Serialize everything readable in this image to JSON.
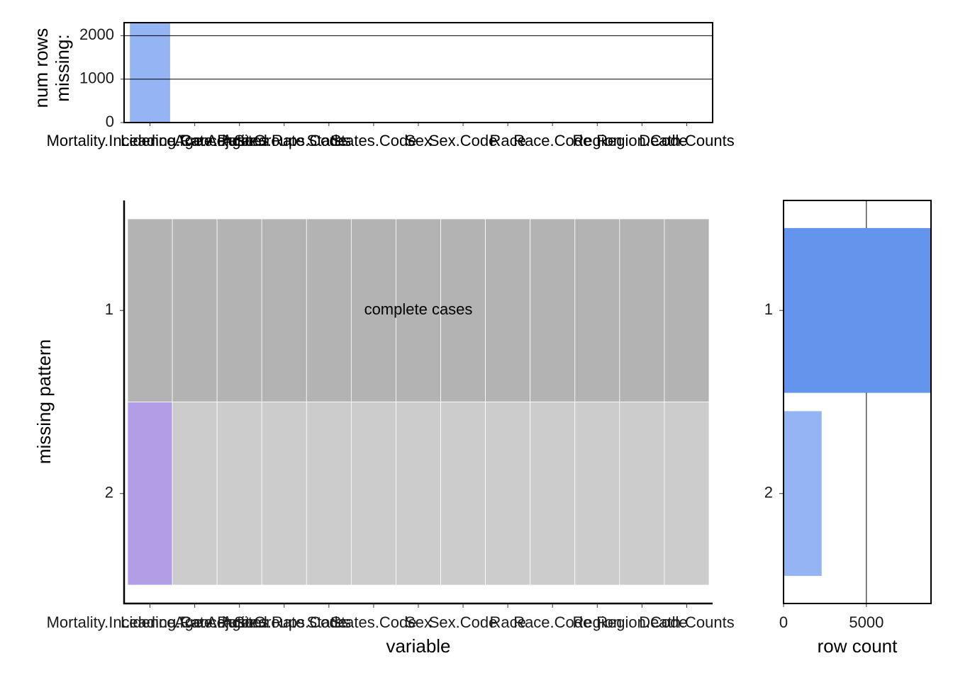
{
  "chart_data": [
    {
      "type": "bar",
      "ylabel_lines": [
        "num rows",
        "missing:"
      ],
      "categories": [
        "Mortality.Incidence.Rate.Ratio",
        "Leading.Cancer.Sites",
        "Age.Adjusted.Rate",
        "Age.Groups.Code",
        "States",
        "States.Code",
        "Sex",
        "Sex.Code",
        "Race",
        "Race.Code",
        "Region",
        "Region.Code",
        "Death.Counts"
      ],
      "values": [
        2300,
        0,
        0,
        0,
        0,
        0,
        0,
        0,
        0,
        0,
        0,
        0,
        0
      ],
      "color": "#94b4f3",
      "ylim": [
        0,
        2300
      ],
      "yticks": [
        0,
        1000,
        2000
      ],
      "grid": true
    },
    {
      "type": "tile",
      "xlabel": "variable",
      "ylabel": "missing pattern",
      "annotation": "complete cases",
      "categories": [
        "Mortality.Incidence.Rate.Ratio",
        "Leading.Cancer.Sites",
        "Age.Adjusted.Rate",
        "Age.Groups.Code",
        "States",
        "States.Code",
        "Sex",
        "Sex.Code",
        "Race",
        "Race.Code",
        "Region",
        "Region.Code",
        "Death.Counts"
      ],
      "patterns": [
        "1",
        "2"
      ],
      "missing": [
        [
          0,
          0,
          0,
          0,
          0,
          0,
          0,
          0,
          0,
          0,
          0,
          0,
          0
        ],
        [
          1,
          0,
          0,
          0,
          0,
          0,
          0,
          0,
          0,
          0,
          0,
          0,
          0
        ]
      ],
      "complete_color": "#b3b3b3",
      "missing_color": "#b19ee6",
      "present_color": "#cccccc"
    },
    {
      "type": "hbar",
      "xlabel": "row count",
      "categories": [
        "1",
        "2"
      ],
      "values": [
        8900,
        2300
      ],
      "colors": [
        "#6495ed",
        "#94b4f3"
      ],
      "xlim": [
        0,
        8900
      ],
      "xticks": [
        0,
        5000
      ],
      "grid": true
    }
  ]
}
